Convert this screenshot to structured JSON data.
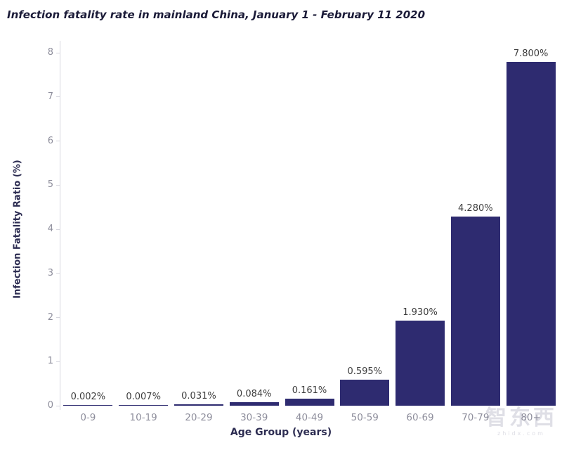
{
  "chart_data": {
    "type": "bar",
    "title": "Infection fatality rate in mainland China, January 1 - February 11 2020",
    "xlabel": "Age Group (years)",
    "ylabel": "Infection Fatality Ratio (%)",
    "categories": [
      "0-9",
      "10-19",
      "20-29",
      "30-39",
      "40-49",
      "50-59",
      "60-69",
      "70-79",
      "80+"
    ],
    "values": [
      0.002,
      0.007,
      0.031,
      0.084,
      0.161,
      0.595,
      1.93,
      4.28,
      7.8
    ],
    "value_labels": [
      "0.002%",
      "0.007%",
      "0.031%",
      "0.084%",
      "0.161%",
      "0.595%",
      "1.930%",
      "4.280%",
      "7.800%"
    ],
    "ylim": [
      0,
      8
    ],
    "yticks": [
      0,
      1,
      2,
      3,
      4,
      5,
      6,
      7,
      8
    ],
    "grid": false,
    "legend": false,
    "bar_color": "#2e2b70",
    "tick_label_color": "#8e8e9c",
    "value_label_color": "#3d3d3d",
    "axis_title_color": "#2d2d52"
  },
  "watermark": {
    "text": "智东西",
    "url": "zhidx.com"
  }
}
